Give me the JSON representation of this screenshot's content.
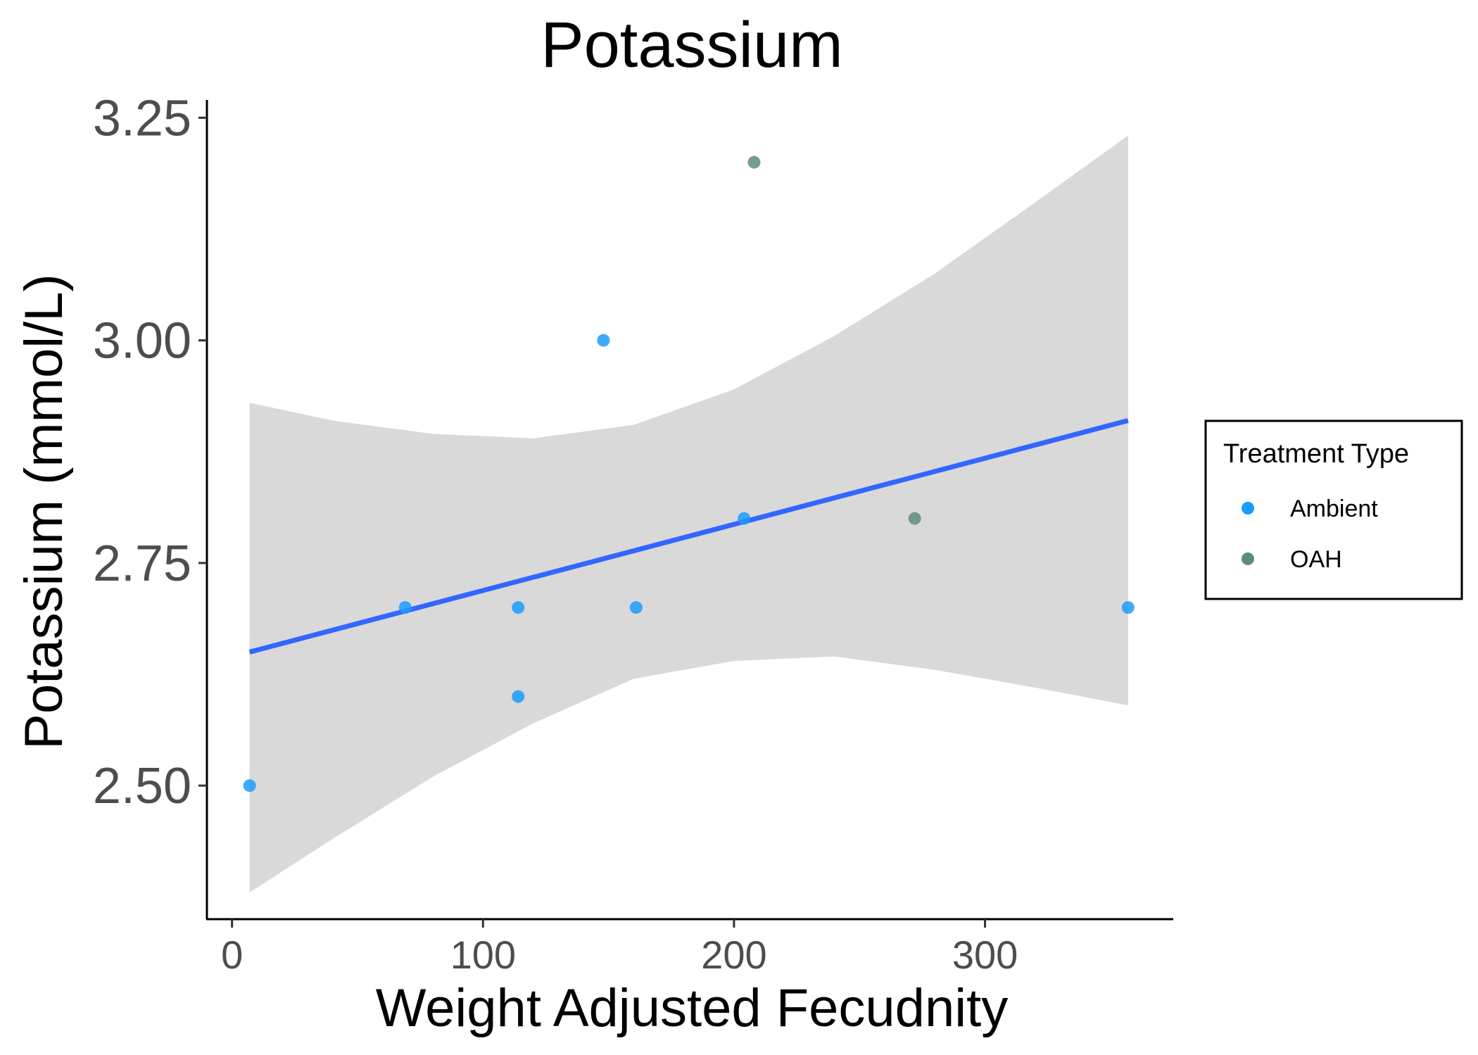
{
  "chart_data": {
    "type": "scatter",
    "title": "Potassium",
    "xlabel": "Weight Adjusted Fecudnity",
    "ylabel": "Potassium (mmol/L)",
    "xlim": [
      -10,
      375
    ],
    "ylim": [
      2.35,
      3.27
    ],
    "xticks": [
      0,
      100,
      200,
      300
    ],
    "xtick_labels": [
      "0",
      "100",
      "200",
      "300"
    ],
    "yticks": [
      2.5,
      2.75,
      3.0,
      3.25
    ],
    "ytick_labels": [
      "2.50",
      "2.75",
      "3.00",
      "3.25"
    ],
    "grid": false,
    "legend": {
      "title": "Treatment Type",
      "position": "right",
      "entries": [
        {
          "label": "Ambient",
          "color": "#1a9bff"
        },
        {
          "label": "OAH",
          "color": "#5f8c7a"
        }
      ]
    },
    "series": [
      {
        "name": "Ambient",
        "color": "#1a9bff",
        "points": [
          {
            "x": 7,
            "y": 2.5
          },
          {
            "x": 69,
            "y": 2.7
          },
          {
            "x": 114,
            "y": 2.7
          },
          {
            "x": 114,
            "y": 2.6
          },
          {
            "x": 148,
            "y": 3.0
          },
          {
            "x": 161,
            "y": 2.7
          },
          {
            "x": 204,
            "y": 2.8
          },
          {
            "x": 357,
            "y": 2.7
          }
        ]
      },
      {
        "name": "OAH",
        "color": "#5f8c7a",
        "points": [
          {
            "x": 208,
            "y": 3.2
          },
          {
            "x": 272,
            "y": 2.8
          }
        ]
      }
    ],
    "fit_line": {
      "method": "linear",
      "color": "#3366ff",
      "points": [
        {
          "x": 7,
          "y": 2.65
        },
        {
          "x": 357,
          "y": 2.91
        }
      ]
    },
    "confidence_band": {
      "color": "#d9d9d9",
      "x": [
        7,
        40,
        80,
        120,
        160,
        200,
        240,
        280,
        320,
        357
      ],
      "lower": [
        2.38,
        2.44,
        2.51,
        2.57,
        2.62,
        2.64,
        2.645,
        2.63,
        2.61,
        2.59
      ],
      "upper": [
        2.93,
        2.91,
        2.895,
        2.89,
        2.905,
        2.945,
        3.005,
        3.075,
        3.155,
        3.23
      ]
    }
  }
}
